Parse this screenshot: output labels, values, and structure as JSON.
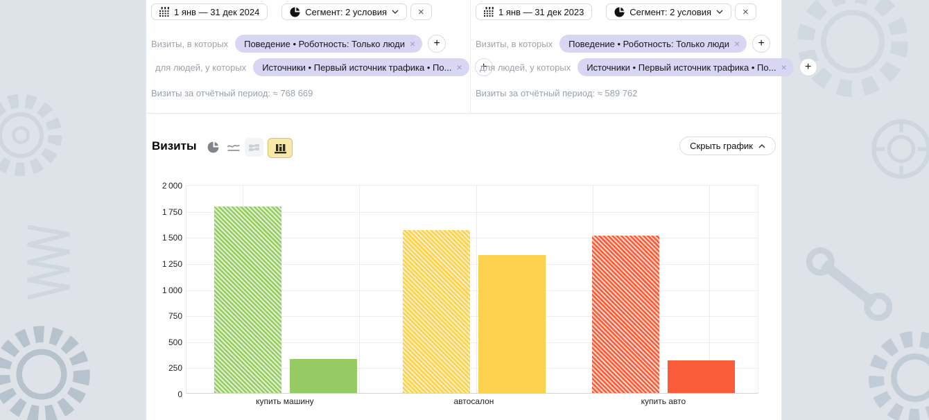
{
  "colors": {
    "page_background": "#dde3e9",
    "panel": "#ffffff",
    "chip_background": "#d9d6f3",
    "muted_text": "#98a1a9",
    "selected_charttype_bg": "#f9e9a9",
    "selected_charttype_border": "#dcc167",
    "category_green": "#96cb64",
    "category_yellow": "#fbd14e",
    "category_red": "#fa5c39"
  },
  "icons": {
    "date_icon": "calendar-grid",
    "segment_icon": "pie-segment",
    "chip_close": "×",
    "add_condition": "+",
    "segment_close": "×",
    "chart_types": [
      "pie-chart",
      "line-chart",
      "area-chart",
      "bar-chart"
    ],
    "chevron_down": "∨",
    "chevron_up": "∧"
  },
  "filters": {
    "left": {
      "date_range": "1 янв — 31 дек 2024",
      "segment": "Сегмент: 2 условия",
      "close": "×",
      "row1_label": "Визиты, в которых",
      "row1_chip": "Поведение • Роботность: Только люди",
      "row1_chip_close": "×",
      "row2_label": "для людей, у которых",
      "row2_chip": "Источники • Первый источник трафика • По...",
      "row2_chip_close": "×",
      "plus": "+",
      "summary_label": "Визиты за отчётный период:",
      "summary_value": "≈ 768 669"
    },
    "right": {
      "date_range": "1 янв — 31 дек 2023",
      "segment": "Сегмент: 2 условия",
      "close": "×",
      "row1_label": "Визиты, в которых",
      "row1_chip": "Поведение • Роботность: Только люди",
      "row1_chip_close": "×",
      "row2_label": "для людей, у которых",
      "row2_chip": "Источники • Первый источник трафика • По...",
      "row2_chip_close": "×",
      "plus": "+",
      "summary_label": "Визиты за отчётный период:",
      "summary_value": "≈ 589 762"
    }
  },
  "chart_header": {
    "title": "Визиты",
    "hide_label": "Скрыть график"
  },
  "chart_data": {
    "type": "bar",
    "title": "Визиты",
    "categories": [
      "купить машину",
      "автосалон",
      "купить авто"
    ],
    "series": [
      {
        "name": "1 янв — 31 дек 2024",
        "pattern": "hatched",
        "values": [
          1785,
          1560,
          1510
        ]
      },
      {
        "name": "1 янв — 31 дек 2023",
        "pattern": "solid",
        "values": [
          325,
          1320,
          310
        ]
      }
    ],
    "category_colors": [
      "#96cb64",
      "#fbd14e",
      "#fa5c39"
    ],
    "hatch_light": [
      "#e2f1d0",
      "#fef0c2",
      "#fed4c6"
    ],
    "xlabel": "",
    "ylabel": "",
    "ylim": [
      0,
      2000
    ],
    "yticks": [
      0,
      250,
      500,
      750,
      1000,
      1250,
      1500,
      1750,
      2000
    ],
    "grid": true,
    "legend": "none"
  }
}
